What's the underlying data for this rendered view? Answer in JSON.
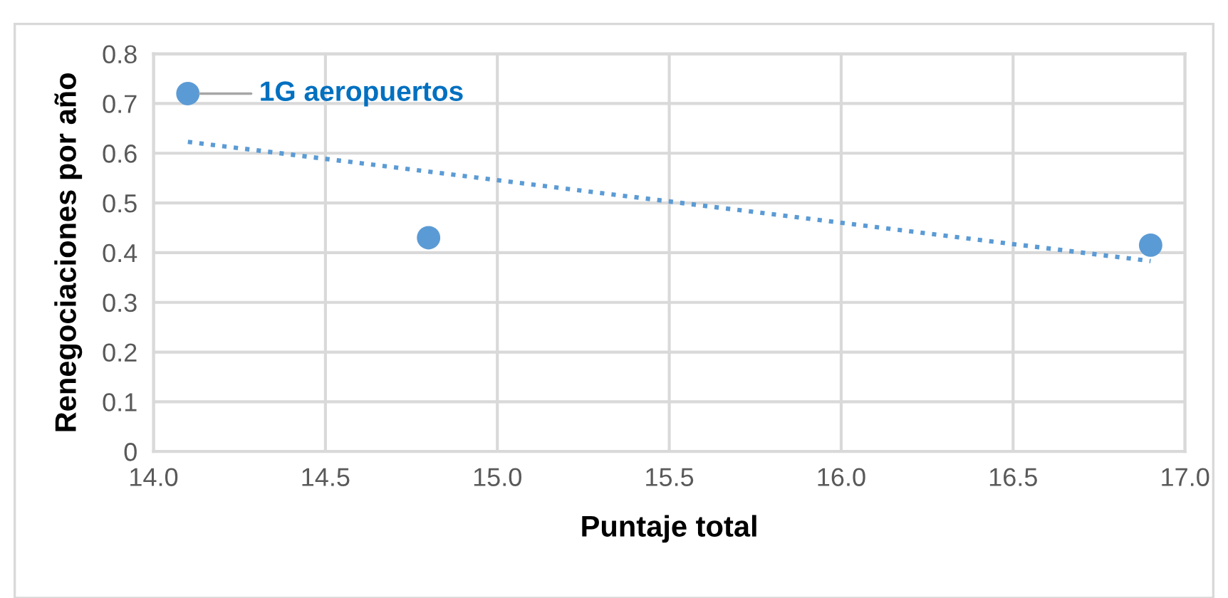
{
  "chart_data": {
    "type": "scatter",
    "xlabel": "Puntaje total",
    "ylabel": "Renegociaciones por año",
    "series": [
      {
        "color": "#5b9bd5",
        "x": [
          14.1,
          14.8,
          16.9
        ],
        "values": [
          0.72,
          0.43,
          0.415
        ],
        "marker": "circle"
      },
      {
        "type": "line",
        "color": "#5b9bd5",
        "x": [
          14.1,
          16.9
        ],
        "values": [
          0.623,
          0.383
        ],
        "marker": "none",
        "line_style": "dotted"
      }
    ],
    "annotations": [
      {
        "text": "1G aeropuertos",
        "x": 14.1,
        "y": 0.72
      }
    ],
    "xlim": [
      14.0,
      17.0
    ],
    "xticks": [
      {
        "value": 14,
        "label": "14.0"
      },
      14.5,
      {
        "value": 15,
        "label": "15.0"
      },
      15.5,
      {
        "value": 16,
        "label": "16.0"
      },
      16.5,
      {
        "value": 17,
        "label": "17.0"
      }
    ],
    "ylim": [
      0,
      0.8
    ],
    "yticks": [
      0,
      0.1,
      0.2,
      0.3,
      0.4,
      0.5,
      0.6,
      0.7,
      0.8
    ],
    "grid": true,
    "legend": false
  }
}
